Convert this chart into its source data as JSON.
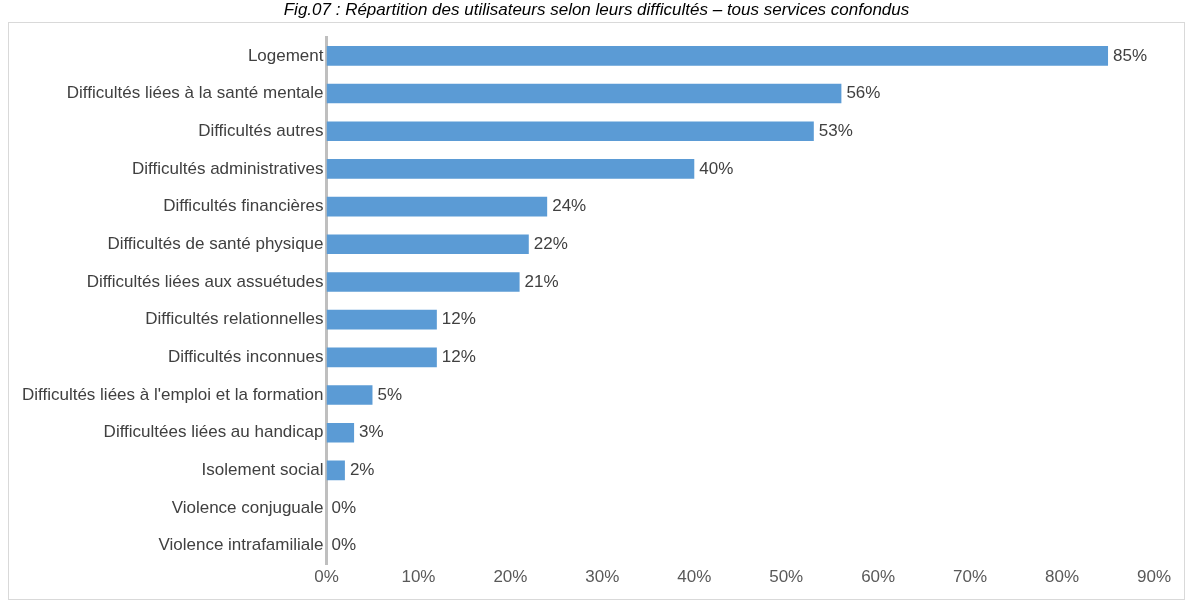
{
  "chart_data": {
    "type": "bar",
    "orientation": "horizontal",
    "title": "Fig.07 : Répartition des utilisateurs selon leurs difficultés – tous services confondus",
    "categories": [
      "Logement",
      "Difficultés liées à la santé mentale",
      "Difficultés autres",
      "Difficultés administratives",
      "Difficultés financières",
      "Difficultés de santé physique",
      "Difficultés liées aux assuétudes",
      "Difficultés relationnelles",
      "Difficultés inconnues",
      "Difficultés liées à l'emploi et la formation",
      "Difficultées liées au handicap",
      "Isolement social",
      "Violence conjuguale",
      "Violence intrafamiliale"
    ],
    "values": [
      85,
      56,
      53,
      40,
      24,
      22,
      21,
      12,
      12,
      5,
      3,
      2,
      0,
      0
    ],
    "color": "#5b9bd5",
    "xlim": [
      0,
      90
    ],
    "xticks": [
      {
        "value": 0,
        "label": "0%"
      },
      {
        "value": 10,
        "label": "10%"
      },
      {
        "value": 20,
        "label": "20%"
      },
      {
        "value": 30,
        "label": "30%"
      },
      {
        "value": 40,
        "label": "40%"
      },
      {
        "value": 50,
        "label": "50%"
      },
      {
        "value": 60,
        "label": "60%"
      },
      {
        "value": 70,
        "label": "70%"
      },
      {
        "value": 80,
        "label": "80%"
      },
      {
        "value": 90,
        "label": "90%"
      }
    ],
    "value_labels": [
      "85%",
      "56%",
      "53%",
      "40%",
      "24%",
      "22%",
      "21%",
      "12%",
      "12%",
      "5%",
      "3%",
      "2%",
      "0%",
      "0%"
    ],
    "grid": false,
    "legend": false
  }
}
